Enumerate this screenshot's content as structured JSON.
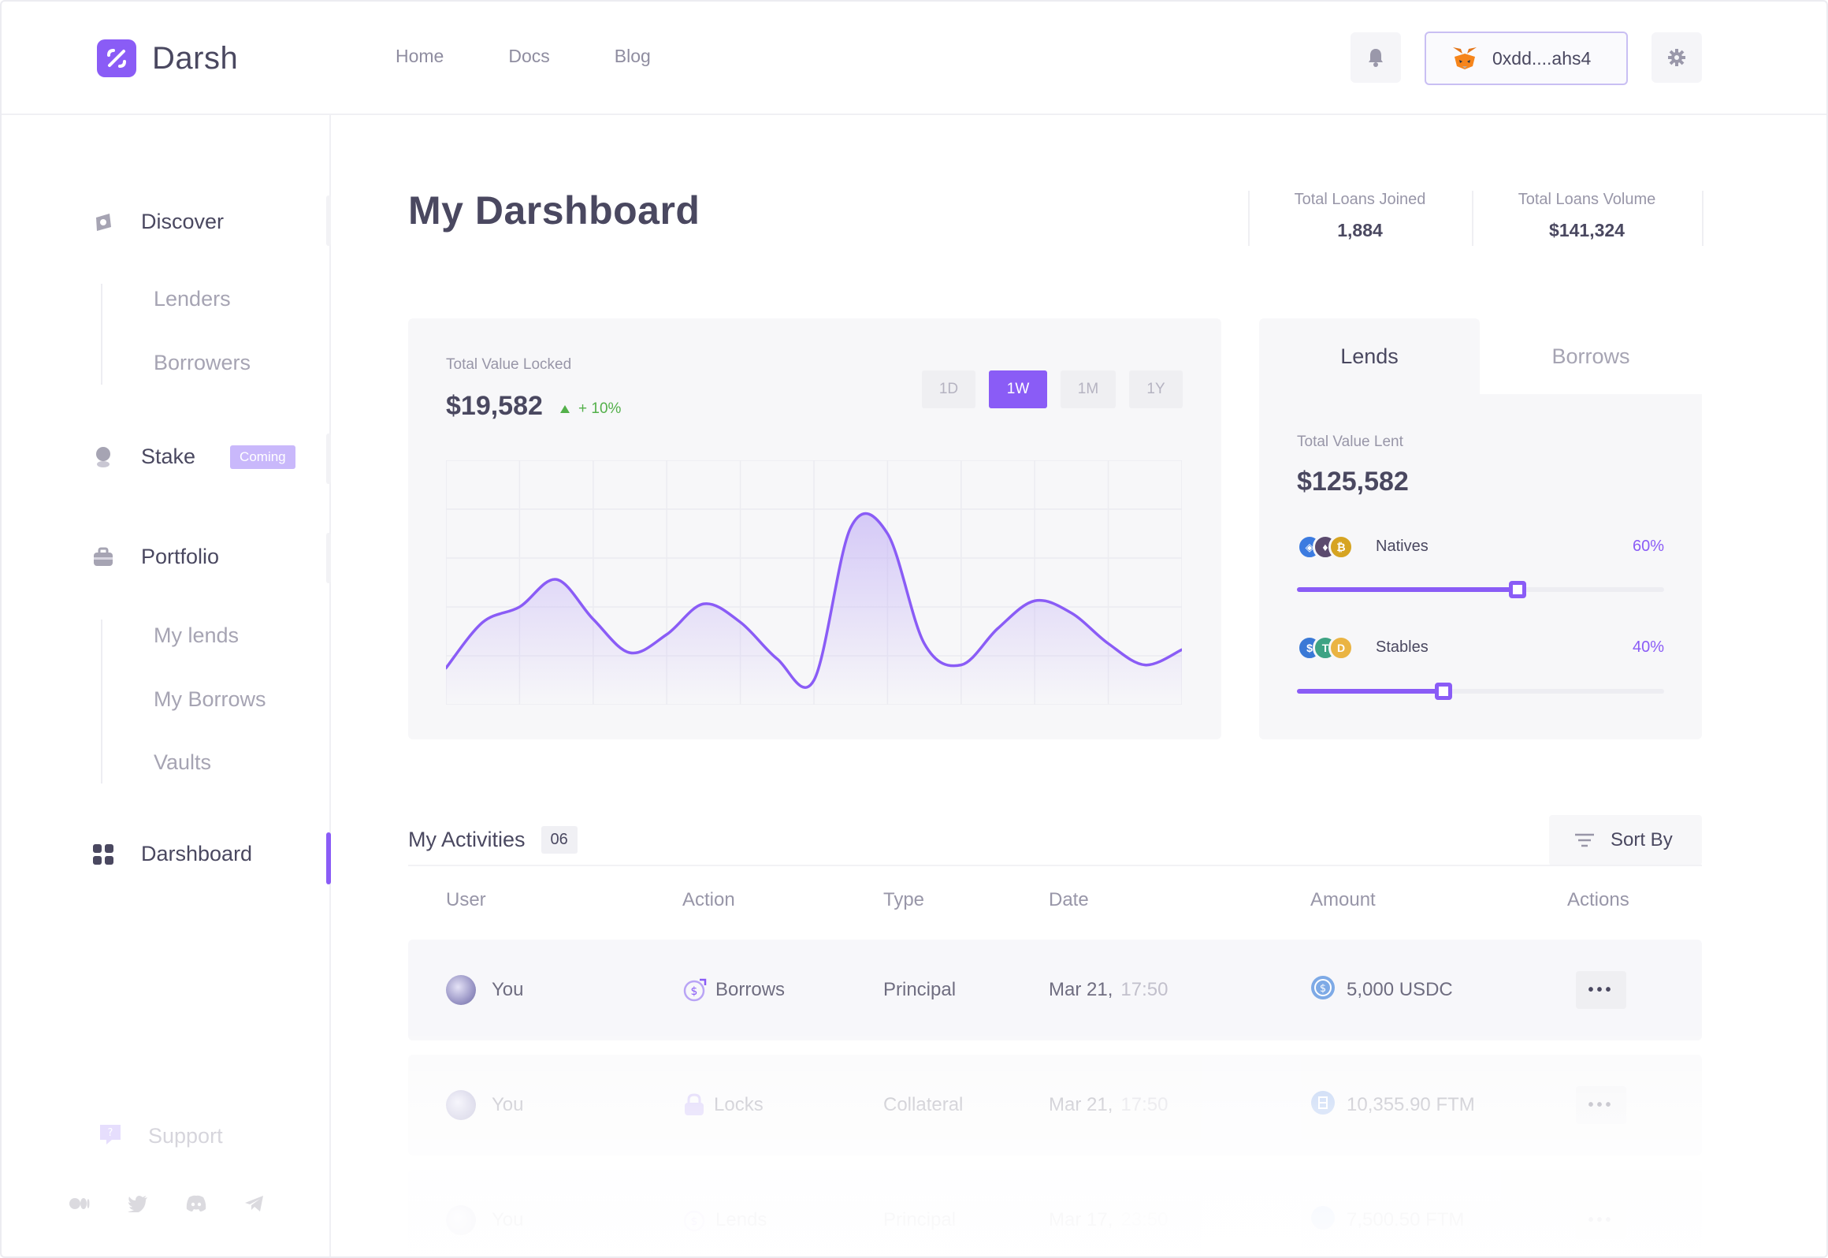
{
  "brand": {
    "name": "Darsh",
    "logo_icon": "percent-swoosh-icon",
    "accent": "#8a5cf6"
  },
  "nav": {
    "items": [
      "Home",
      "Docs",
      "Blog"
    ]
  },
  "header": {
    "wallet_address": "0xdd....ahs4",
    "wallet_icon": "metamask-fox-icon",
    "bell_icon": "bell-icon",
    "settings_icon": "gear-icon"
  },
  "sidebar": {
    "discover": {
      "label": "Discover",
      "subitems": [
        "Lenders",
        "Borrowers"
      ]
    },
    "stake": {
      "label": "Stake",
      "badge": "Coming"
    },
    "portfolio": {
      "label": "Portfolio",
      "subitems": [
        "My lends",
        "My Borrows",
        "Vaults"
      ]
    },
    "dashboard": {
      "label": "Darshboard"
    },
    "support": {
      "label": "Support"
    },
    "socials": [
      "medium-icon",
      "twitter-icon",
      "discord-icon",
      "telegram-icon"
    ]
  },
  "main": {
    "title": "My Darshboard",
    "stats": [
      {
        "label": "Total Loans Joined",
        "value": "1,884"
      },
      {
        "label": "Total Loans Volume",
        "value": "$141,324"
      }
    ],
    "tvl": {
      "label": "Total Value Locked",
      "value": "$19,582",
      "change": "+ 10%",
      "ranges": [
        "1D",
        "1W",
        "1M",
        "1Y"
      ],
      "active_range": "1W"
    },
    "lend_tabs": [
      "Lends",
      "Borrows"
    ],
    "lent": {
      "label": "Total Value Lent",
      "value": "$125,582",
      "allocations": [
        {
          "name": "Natives",
          "pct_label": "60%",
          "fraction": 0.6
        },
        {
          "name": "Stables",
          "pct_label": "40%",
          "fraction": 0.4
        }
      ]
    },
    "activities": {
      "title": "My Activities",
      "count": "06",
      "sort_label": "Sort By",
      "columns": [
        "User",
        "Action",
        "Type",
        "Date",
        "Amount",
        "Actions"
      ],
      "rows": [
        {
          "user": "You",
          "action": "Borrows",
          "type": "Principal",
          "date": "Mar 21,",
          "time": "17:50",
          "amount": "5,000 USDC"
        },
        {
          "user": "You",
          "action": "Locks",
          "type": "Collateral",
          "date": "Mar 21,",
          "time": "17:50",
          "amount": "10,355.90 FTM"
        },
        {
          "user": "You",
          "action": "Lends",
          "type": "Principal",
          "date": "Mar 17,",
          "time": "23:50",
          "amount": "7,500.50 FTM"
        }
      ]
    }
  },
  "chart_data": {
    "type": "area",
    "x": [
      0,
      1,
      2,
      3,
      4,
      5,
      6,
      7,
      8,
      9,
      10,
      11,
      12,
      13,
      14,
      15,
      16,
      17,
      18,
      19,
      20
    ],
    "values": [
      12,
      27,
      32,
      41,
      28,
      17,
      23,
      33,
      27,
      15,
      8,
      58,
      56,
      20,
      13,
      25,
      34,
      30,
      20,
      13,
      18
    ],
    "ylim": [
      0,
      80
    ],
    "grid": true,
    "line_color": "#8a5cf6"
  }
}
